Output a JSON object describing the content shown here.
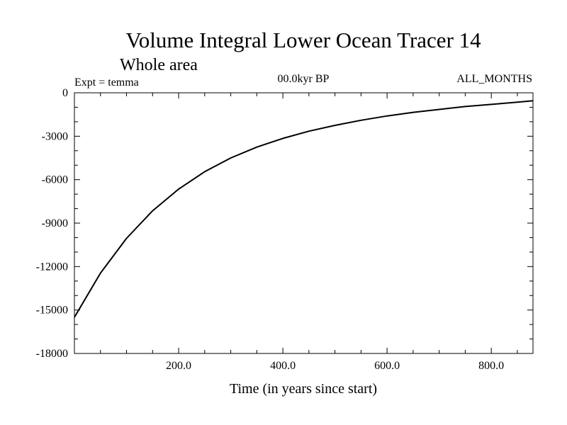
{
  "chart_data": {
    "type": "line",
    "title": "Volume Integral Lower Ocean Tracer 14",
    "subtitle": "Whole area",
    "annotations": {
      "experiment": "Expt = temma",
      "period": "00.0kyr BP",
      "months": "ALL_MONTHS"
    },
    "xlabel": "Time (in years since start)",
    "ylabel": "",
    "xlim": [
      0,
      880
    ],
    "ylim": [
      -18000,
      0
    ],
    "x_ticks": [
      200,
      400,
      600,
      800
    ],
    "x_tick_labels": [
      "200.0",
      "400.0",
      "600.0",
      "800.0"
    ],
    "y_ticks": [
      0,
      -3000,
      -6000,
      -9000,
      -12000,
      -15000,
      -18000
    ],
    "y_tick_labels": [
      "0",
      "-3000",
      "-6000",
      "-9000",
      "-12000",
      "-15000",
      "-18000"
    ],
    "grid": false,
    "series": [
      {
        "name": "",
        "color": "#000000",
        "x": [
          0,
          50,
          100,
          150,
          200,
          250,
          300,
          350,
          400,
          450,
          500,
          550,
          600,
          650,
          700,
          750,
          800,
          850,
          880
        ],
        "y": [
          -15500,
          -12450,
          -10050,
          -8150,
          -6650,
          -5450,
          -4500,
          -3750,
          -3150,
          -2650,
          -2250,
          -1900,
          -1600,
          -1350,
          -1150,
          -950,
          -800,
          -650,
          -550
        ]
      }
    ]
  }
}
